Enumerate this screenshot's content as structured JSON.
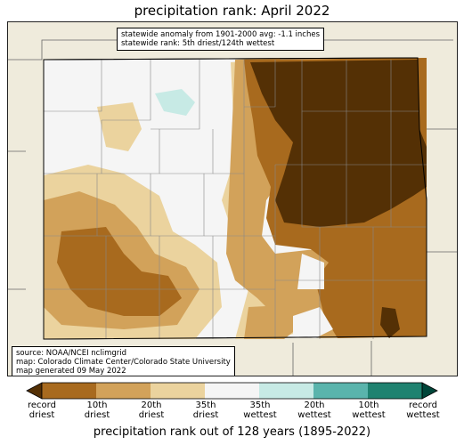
{
  "title": "precipitation rank: April 2022",
  "anomaly_box": {
    "line1": "statewide anomaly from 1901-2000 avg: -1.1 inches",
    "line2": "statewide rank: 5th driest/124th wettest"
  },
  "source_box": {
    "line1": "source: NOAA/NCEI nclimgrid",
    "line2": "map: Colorado Climate Center/Colorado State University",
    "line3": "map generated 09 May 2022"
  },
  "colors": {
    "record_driest": "#543005",
    "driest_10th": "#a86a1e",
    "driest_20th": "#d2a25a",
    "driest_35th": "#ebd39e",
    "near_normal": "#f5f5f5",
    "wettest_35th": "#c7eae5",
    "wettest_20th": "#5ab4ac",
    "wettest_10th": "#1f8270",
    "record_wettest": "#00463a",
    "background": "#efebdc"
  },
  "colorbar": {
    "labels": [
      {
        "line1": "record",
        "line2": "driest"
      },
      {
        "line1": "10th",
        "line2": "driest"
      },
      {
        "line1": "20th",
        "line2": "driest"
      },
      {
        "line1": "35th",
        "line2": "driest"
      },
      {
        "line1": "35th",
        "line2": "wettest"
      },
      {
        "line1": "20th",
        "line2": "wettest"
      },
      {
        "line1": "10th",
        "line2": "wettest"
      },
      {
        "line1": "record",
        "line2": "wettest"
      }
    ],
    "xlabel": "precipitation rank out of 128 years (1895-2022)"
  }
}
